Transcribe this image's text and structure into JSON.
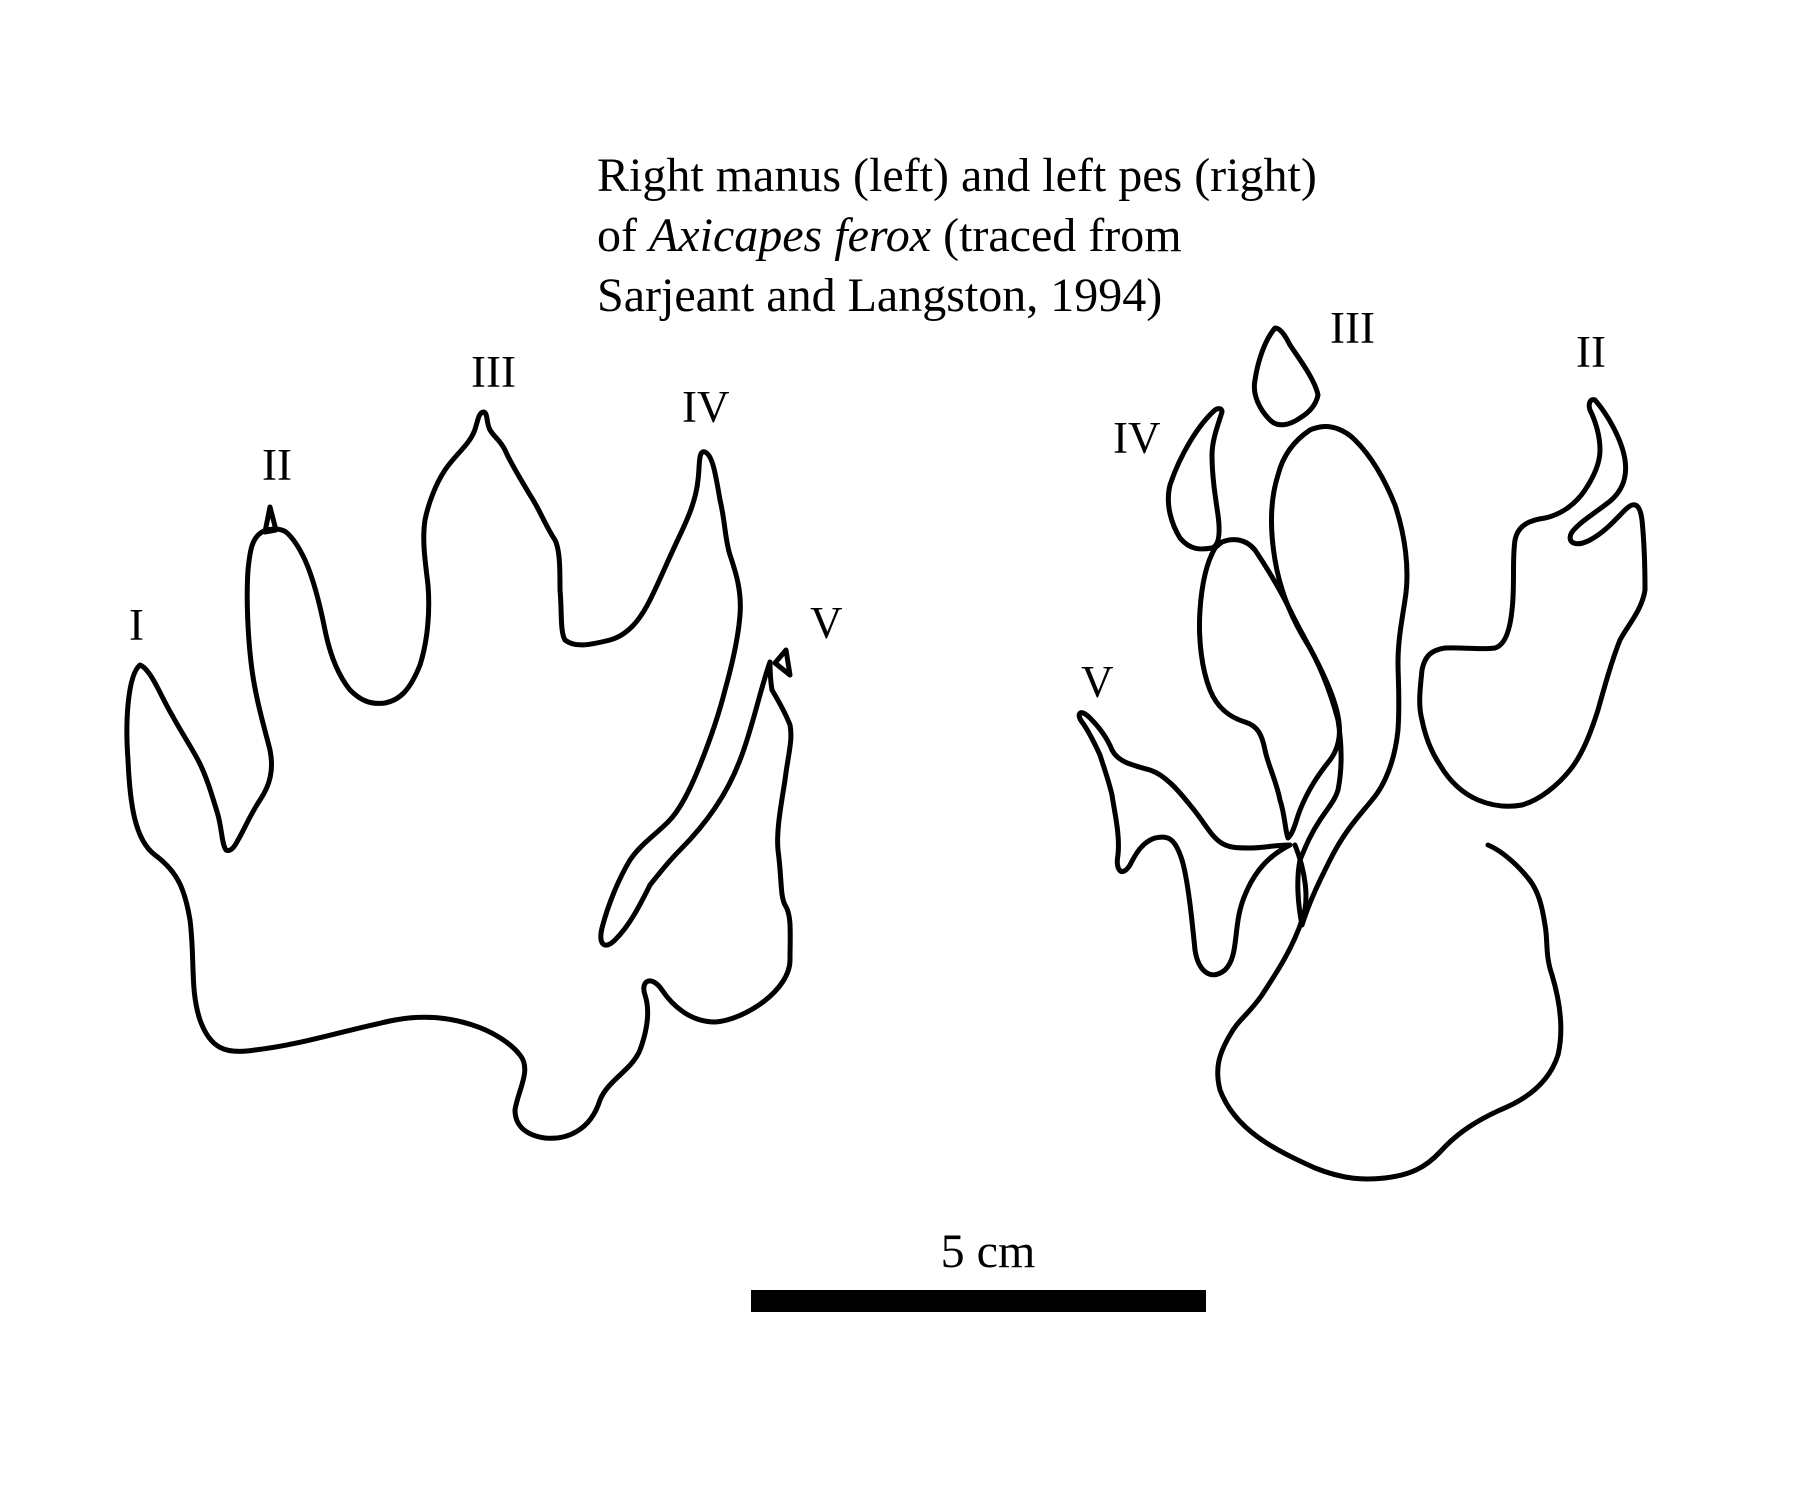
{
  "caption": {
    "line1": "Right manus (left) and left pes (right)",
    "line2_pre": "of ",
    "line2_species": "Axicapes ferox",
    "line2_post": " (traced from",
    "line3": "Sarjeant and Langston, 1994)"
  },
  "manus": {
    "digits": {
      "I": "I",
      "II": "II",
      "III": "III",
      "IV": "IV",
      "V": "V"
    }
  },
  "pes": {
    "digits": {
      "II": "II",
      "III": "III",
      "IV": "IV",
      "V": "V"
    }
  },
  "scale_bar": {
    "label": "5 cm"
  },
  "colors": {
    "ink": "#000000",
    "background": "#ffffff"
  }
}
